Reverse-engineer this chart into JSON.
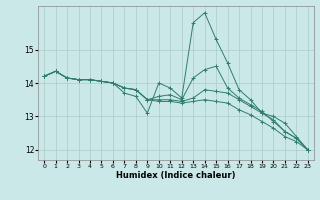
{
  "xlabel": "Humidex (Indice chaleur)",
  "background_color": "#cbe8e8",
  "grid_color": "#aacccc",
  "line_color": "#2e7d6e",
  "ylim": [
    11.7,
    16.3
  ],
  "xlim": [
    -0.5,
    23.5
  ],
  "yticks": [
    12,
    13,
    14,
    15
  ],
  "xticks": [
    0,
    1,
    2,
    3,
    4,
    5,
    6,
    7,
    8,
    9,
    10,
    11,
    12,
    13,
    14,
    15,
    16,
    17,
    18,
    19,
    20,
    21,
    22,
    23
  ],
  "series": [
    [
      14.2,
      14.35,
      14.15,
      14.1,
      14.1,
      14.05,
      14.0,
      13.7,
      13.6,
      13.1,
      14.0,
      13.85,
      13.55,
      15.8,
      16.1,
      15.3,
      14.6,
      13.8,
      13.5,
      13.1,
      13.0,
      12.8,
      12.4,
      12.0
    ],
    [
      14.2,
      14.35,
      14.15,
      14.1,
      14.1,
      14.05,
      14.0,
      13.85,
      13.8,
      13.5,
      13.5,
      13.5,
      13.45,
      13.55,
      13.8,
      13.75,
      13.7,
      13.5,
      13.3,
      13.1,
      12.9,
      12.55,
      12.35,
      12.0
    ],
    [
      14.2,
      14.35,
      14.15,
      14.1,
      14.1,
      14.05,
      14.0,
      13.85,
      13.8,
      13.5,
      13.45,
      13.45,
      13.4,
      13.45,
      13.5,
      13.45,
      13.4,
      13.2,
      13.05,
      12.85,
      12.65,
      12.4,
      12.25,
      12.0
    ],
    [
      14.2,
      14.35,
      14.15,
      14.1,
      14.1,
      14.05,
      14.0,
      13.85,
      13.8,
      13.5,
      13.6,
      13.65,
      13.5,
      14.15,
      14.4,
      14.5,
      13.85,
      13.55,
      13.35,
      13.15,
      12.85,
      12.55,
      12.35,
      12.0
    ]
  ]
}
